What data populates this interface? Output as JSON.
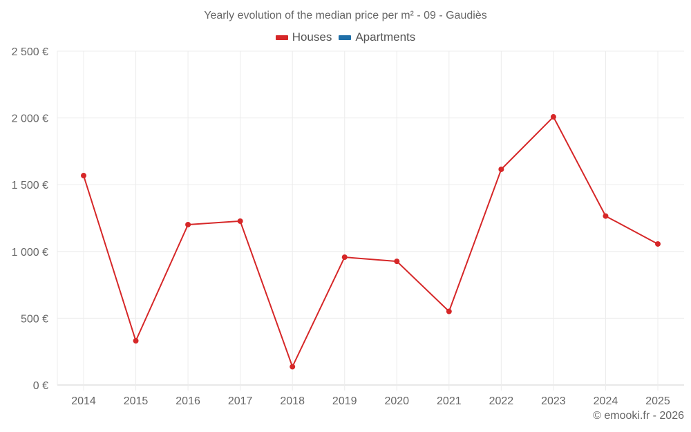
{
  "title": "Yearly evolution of the median price per m² - 09 - Gaudiès",
  "legend": [
    {
      "label": "Houses",
      "color": "#d62728"
    },
    {
      "label": "Apartments",
      "color": "#1f6fa8"
    }
  ],
  "credit": "© emooki.fr - 2026",
  "chart_data": {
    "type": "line",
    "title": "Yearly evolution of the median price per m² - 09 - Gaudiès",
    "xlabel": "",
    "ylabel": "",
    "categories": [
      "2014",
      "2015",
      "2016",
      "2017",
      "2018",
      "2019",
      "2020",
      "2021",
      "2022",
      "2023",
      "2024",
      "2025"
    ],
    "series": [
      {
        "name": "Houses",
        "color": "#d62728",
        "values": [
          1568,
          331,
          1201,
          1227,
          137,
          957,
          926,
          551,
          1615,
          2008,
          1265,
          1056
        ]
      },
      {
        "name": "Apartments",
        "color": "#1f6fa8",
        "values": []
      }
    ],
    "ylim": [
      0,
      2500
    ],
    "yticks": [
      0,
      500,
      1000,
      1500,
      2000,
      2500
    ],
    "ytick_labels": [
      "0 €",
      "500 €",
      "1 000 €",
      "1 500 €",
      "2 000 €",
      "2 500 €"
    ],
    "grid": true,
    "legend_position": "top"
  }
}
